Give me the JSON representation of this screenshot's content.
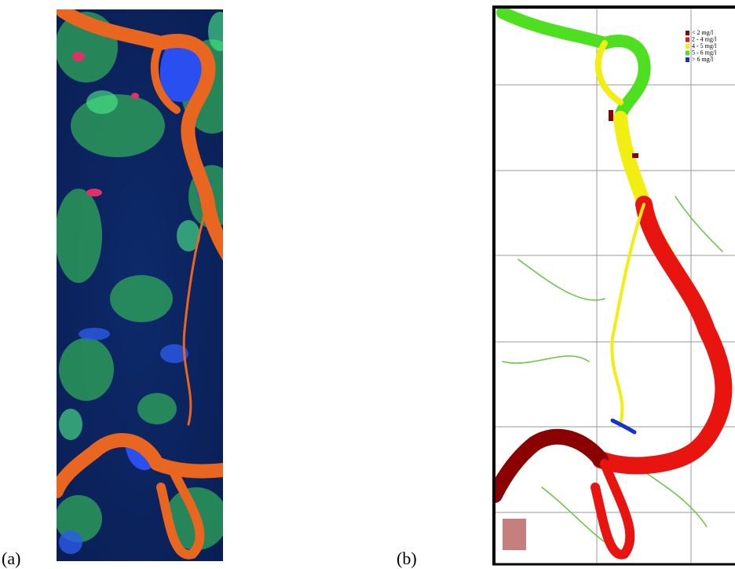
{
  "panels": [
    {
      "label": "(a)"
    },
    {
      "label": "(b)",
      "legend": [
        {
          "label": "< 2 mg/l",
          "color": "#8b0000"
        },
        {
          "label": "2 - 4 mg/l",
          "color": "#e8140f"
        },
        {
          "label": "4 - 5 mg/l",
          "color": "#f2ee12"
        },
        {
          "label": "5 - 6 mg/l",
          "color": "#4ee020"
        },
        {
          "label": "> 6 mg/l",
          "color": "#1432d0"
        }
      ]
    }
  ]
}
